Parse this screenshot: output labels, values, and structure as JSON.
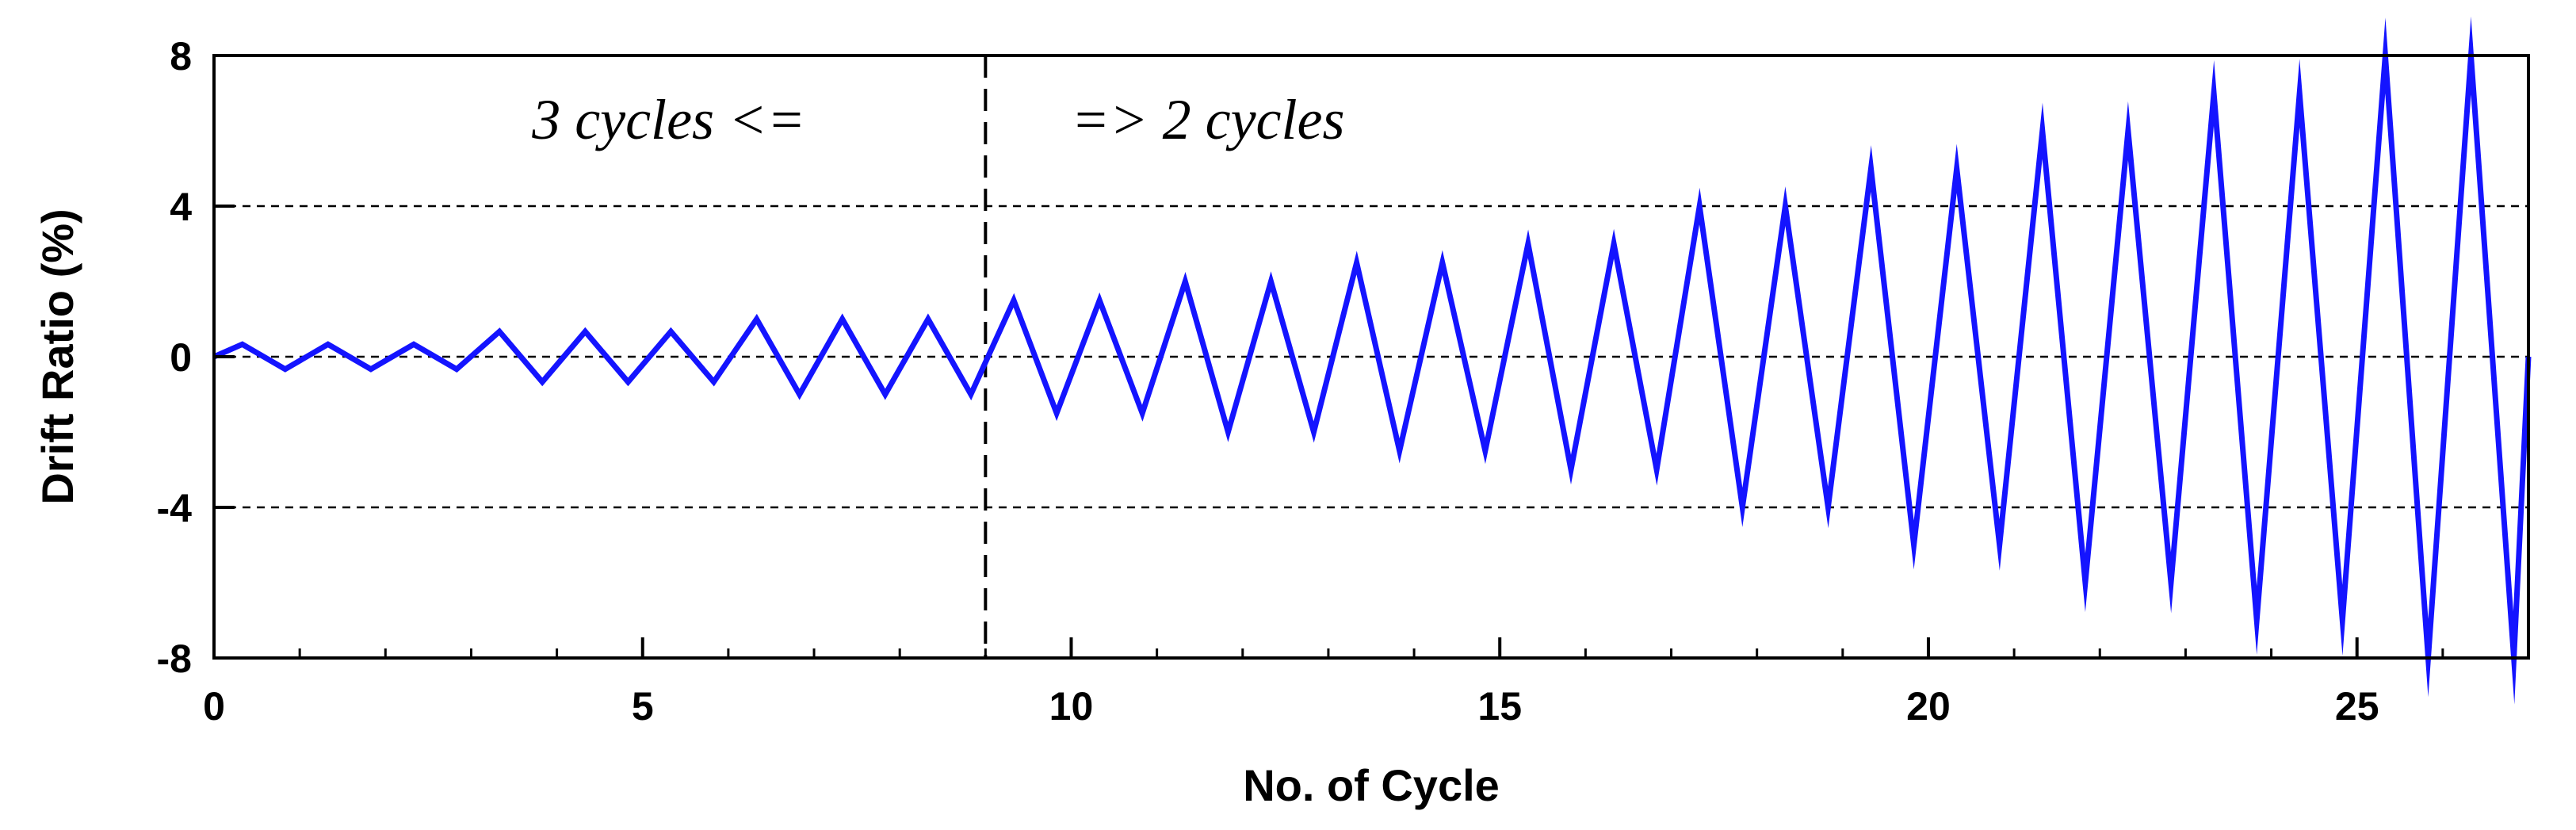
{
  "chart_data": {
    "type": "line",
    "title": "",
    "xlabel": "No. of Cycle",
    "ylabel": "Drift Ratio (%)",
    "xlim": [
      0,
      27
    ],
    "ylim": [
      -8,
      8
    ],
    "x_ticks": [
      0,
      5,
      10,
      15,
      20,
      25
    ],
    "y_ticks": [
      8,
      4,
      0,
      -4,
      -8
    ],
    "x_tick_labels": [
      "0",
      "5",
      "10",
      "15",
      "20",
      "25"
    ],
    "y_tick_labels": [
      "8",
      "4",
      "0",
      "-4",
      "-8"
    ],
    "grid": {
      "horizontal_dashed_at": [
        4,
        0,
        -4
      ]
    },
    "annotations": [
      {
        "text": "3 cycles <=",
        "x": 6.9,
        "y": 6.3
      },
      {
        "text": "=> 2 cycles",
        "x": 10.0,
        "y": 6.3
      }
    ],
    "divider_x": 9,
    "colors": {
      "series": "#1414ff",
      "axes": "#000000",
      "grid": "#000000"
    },
    "series": [
      {
        "name": "",
        "x": [
          0,
          0.33,
          0.83,
          1.33,
          1.83,
          2.33,
          2.83,
          3.33,
          3.83,
          4.33,
          4.83,
          5.33,
          5.83,
          6.33,
          6.83,
          7.33,
          7.83,
          8.33,
          8.83,
          9.33,
          9.83,
          10.33,
          10.83,
          11.33,
          11.83,
          12.33,
          12.83,
          13.33,
          13.83,
          14.33,
          14.83,
          15.33,
          15.83,
          16.33,
          16.83,
          17.33,
          17.83,
          18.33,
          18.83,
          19.33,
          19.83,
          20.33,
          20.83,
          21.33,
          21.83,
          22.33,
          22.83,
          23.33,
          23.83,
          24.33,
          24.83,
          25.33,
          25.83,
          26.33,
          26.83,
          27
        ],
        "y": [
          0,
          0.33,
          -0.33,
          0.33,
          -0.33,
          0.33,
          -0.33,
          0.67,
          -0.67,
          0.67,
          -0.67,
          0.67,
          -0.67,
          1,
          -1,
          1,
          -1,
          1,
          -1,
          1.5,
          -1.5,
          1.5,
          -1.5,
          2,
          -2,
          2,
          -2,
          2.5,
          -2.5,
          2.5,
          -2.5,
          3,
          -3,
          3,
          -3,
          4,
          -4,
          4,
          -4,
          5,
          -5,
          5,
          -5,
          6,
          -6,
          6,
          -6,
          7,
          -7,
          7,
          -7,
          8,
          -8,
          8,
          -8,
          0
        ]
      }
    ]
  }
}
